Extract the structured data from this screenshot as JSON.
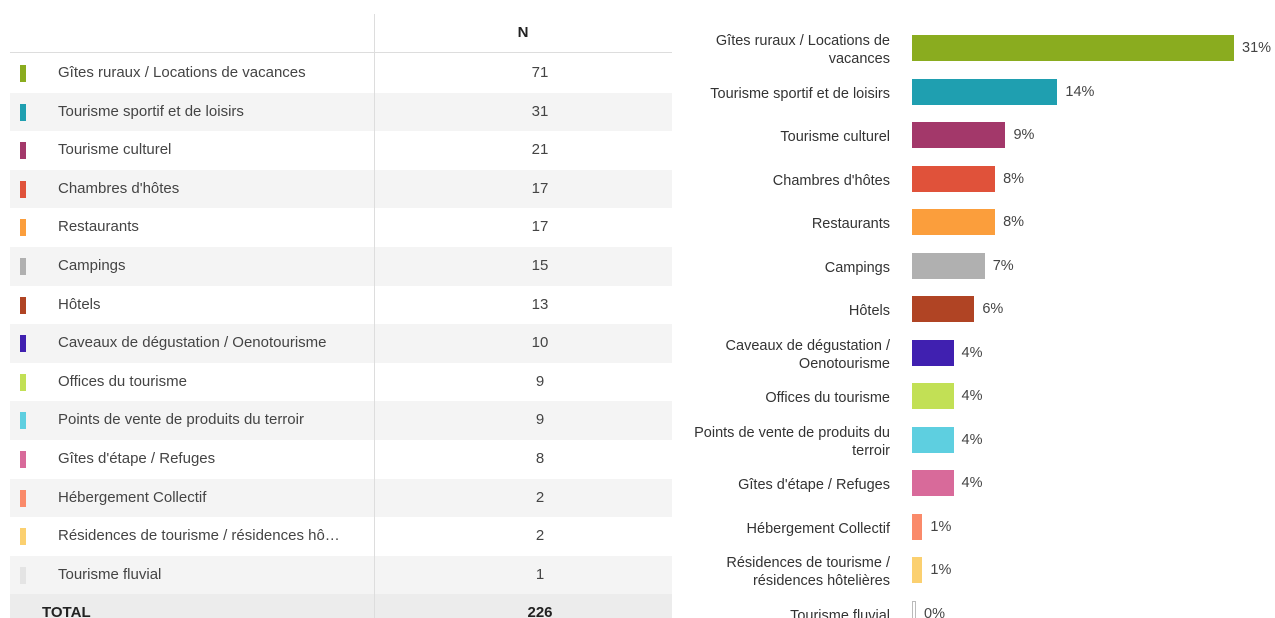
{
  "table": {
    "header": {
      "n": "N"
    },
    "rows": [
      {
        "label": "Gîtes ruraux / Locations de vacances",
        "n": 71
      },
      {
        "label": "Tourisme sportif et de loisirs",
        "n": 31
      },
      {
        "label": "Tourisme culturel",
        "n": 21
      },
      {
        "label": "Chambres d'hôtes",
        "n": 17
      },
      {
        "label": "Restaurants",
        "n": 17
      },
      {
        "label": "Campings",
        "n": 15
      },
      {
        "label": "Hôtels",
        "n": 13
      },
      {
        "label": "Caveaux de dégustation / Oenotourisme",
        "n": 10
      },
      {
        "label": "Offices du tourisme",
        "n": 9
      },
      {
        "label": "Points de vente de produits du terroir",
        "n": 9
      },
      {
        "label": "Gîtes d'étape / Refuges",
        "n": 8
      },
      {
        "label": "Hébergement Collectif",
        "n": 2
      },
      {
        "label": "Résidences de tourisme / résidences hô…",
        "n": 2
      },
      {
        "label": "Tourisme fluvial",
        "n": 1
      }
    ],
    "total": {
      "label": "TOTAL",
      "n": 226
    }
  },
  "chart_data": {
    "type": "bar",
    "orientation": "horizontal",
    "categories": [
      "Gîtes ruraux / Locations de vacances",
      "Tourisme sportif et de loisirs",
      "Tourisme culturel",
      "Chambres d'hôtes",
      "Restaurants",
      "Campings",
      "Hôtels",
      "Caveaux de dégustation / Oenotourisme",
      "Offices du tourisme",
      "Points de vente de produits du terroir",
      "Gîtes d'étape / Refuges",
      "Hébergement Collectif",
      "Résidences de tourisme / résidences hôtelières",
      "Tourisme fluvial"
    ],
    "values": [
      31,
      14,
      9,
      8,
      8,
      7,
      6,
      4,
      4,
      4,
      4,
      1,
      1,
      0
    ],
    "value_labels": [
      "31%",
      "14%",
      "9%",
      "8%",
      "8%",
      "7%",
      "6%",
      "4%",
      "4%",
      "4%",
      "4%",
      "1%",
      "1%",
      "0%"
    ],
    "colors": [
      "#8aac1f",
      "#1f9fb0",
      "#a3386a",
      "#e0523a",
      "#fb9e3c",
      "#b0b0b0",
      "#b04424",
      "#4020b0",
      "#c2e055",
      "#5ecfe0",
      "#d86a9a",
      "#fa8a6a",
      "#fbd070",
      "#e4e4e4"
    ]
  }
}
